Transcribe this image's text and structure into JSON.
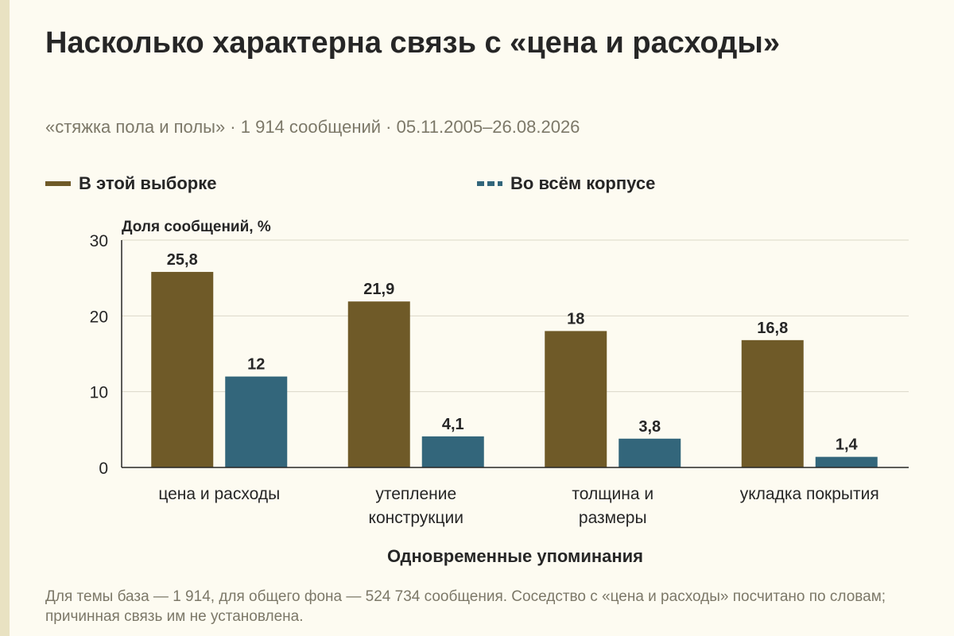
{
  "colors": {
    "background": "#fdfbf1",
    "sample": "#6f5a28",
    "corpus": "#33667b",
    "grid": "#dcd8c8",
    "axis": "#262626"
  },
  "header": {
    "title": "Насколько характерна связь с «цена и расходы»",
    "subtitle": "«стяжка пола и полы» · 1 914 сообщений · 05.11.2005–26.08.2026"
  },
  "legend": {
    "sample_label": "В этой выборке",
    "corpus_label": "Во всём корпусе"
  },
  "footnote": "Для темы база — 1 914, для общего фона — 524 734 сообщения. Соседство с «цена и расходы» посчитано по словам; причинная связь им не установлена.",
  "chart_data": {
    "type": "bar",
    "title": "Насколько характерна связь с «цена и расходы»",
    "ylabel": "Доля сообщений, %",
    "xlabel": "Одновременные упоминания",
    "ylim": [
      0,
      30
    ],
    "yticks": [
      "0",
      "10",
      "20",
      "30"
    ],
    "grid": true,
    "legend_position": "top",
    "categories": [
      [
        "цена и расходы"
      ],
      [
        "утепление",
        "конструкции"
      ],
      [
        "толщина и",
        "размеры"
      ],
      [
        "укладка покрытия"
      ]
    ],
    "series": [
      {
        "name": "В этой выборке",
        "values": [
          25.8,
          21.9,
          18,
          16.8
        ],
        "labels": [
          "25,8",
          "21,9",
          "18",
          "16,8"
        ]
      },
      {
        "name": "Во всём корпусе",
        "values": [
          12,
          4.1,
          3.8,
          1.4
        ],
        "labels": [
          "12",
          "4,1",
          "3,8",
          "1,4"
        ]
      }
    ]
  }
}
